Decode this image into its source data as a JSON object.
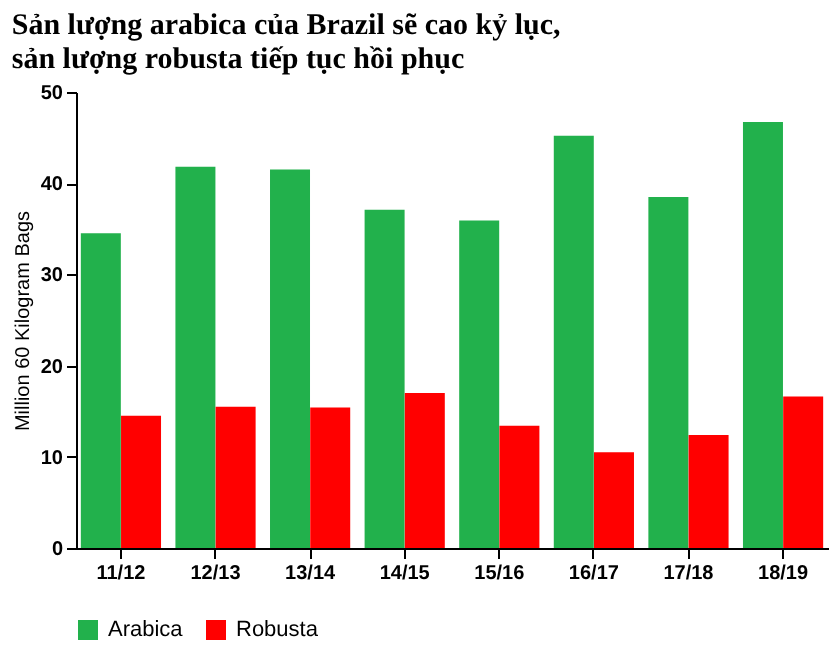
{
  "chart_data": {
    "type": "bar",
    "title": "Sản lượng arabica của Brazil sẽ cao kỷ lục,\nsản lượng robusta tiếp tục hồi phục",
    "ylabel": "Million 60 Kilogram Bags",
    "categories": [
      "11/12",
      "12/13",
      "13/14",
      "14/15",
      "15/16",
      "16/17",
      "17/18",
      "18/19"
    ],
    "series": [
      {
        "name": "Arabica",
        "color": "#22b14c",
        "values": [
          34.5,
          41.8,
          41.5,
          37.1,
          35.9,
          45.2,
          38.5,
          46.7
        ]
      },
      {
        "name": "Robusta",
        "color": "#ff0000",
        "values": [
          14.5,
          15.5,
          15.4,
          17.0,
          13.4,
          10.5,
          12.4,
          16.6
        ]
      }
    ],
    "ylim": [
      0,
      50
    ],
    "yticks": [
      0,
      10,
      20,
      30,
      40,
      50
    ],
    "grid": false,
    "legend": "bottom"
  }
}
